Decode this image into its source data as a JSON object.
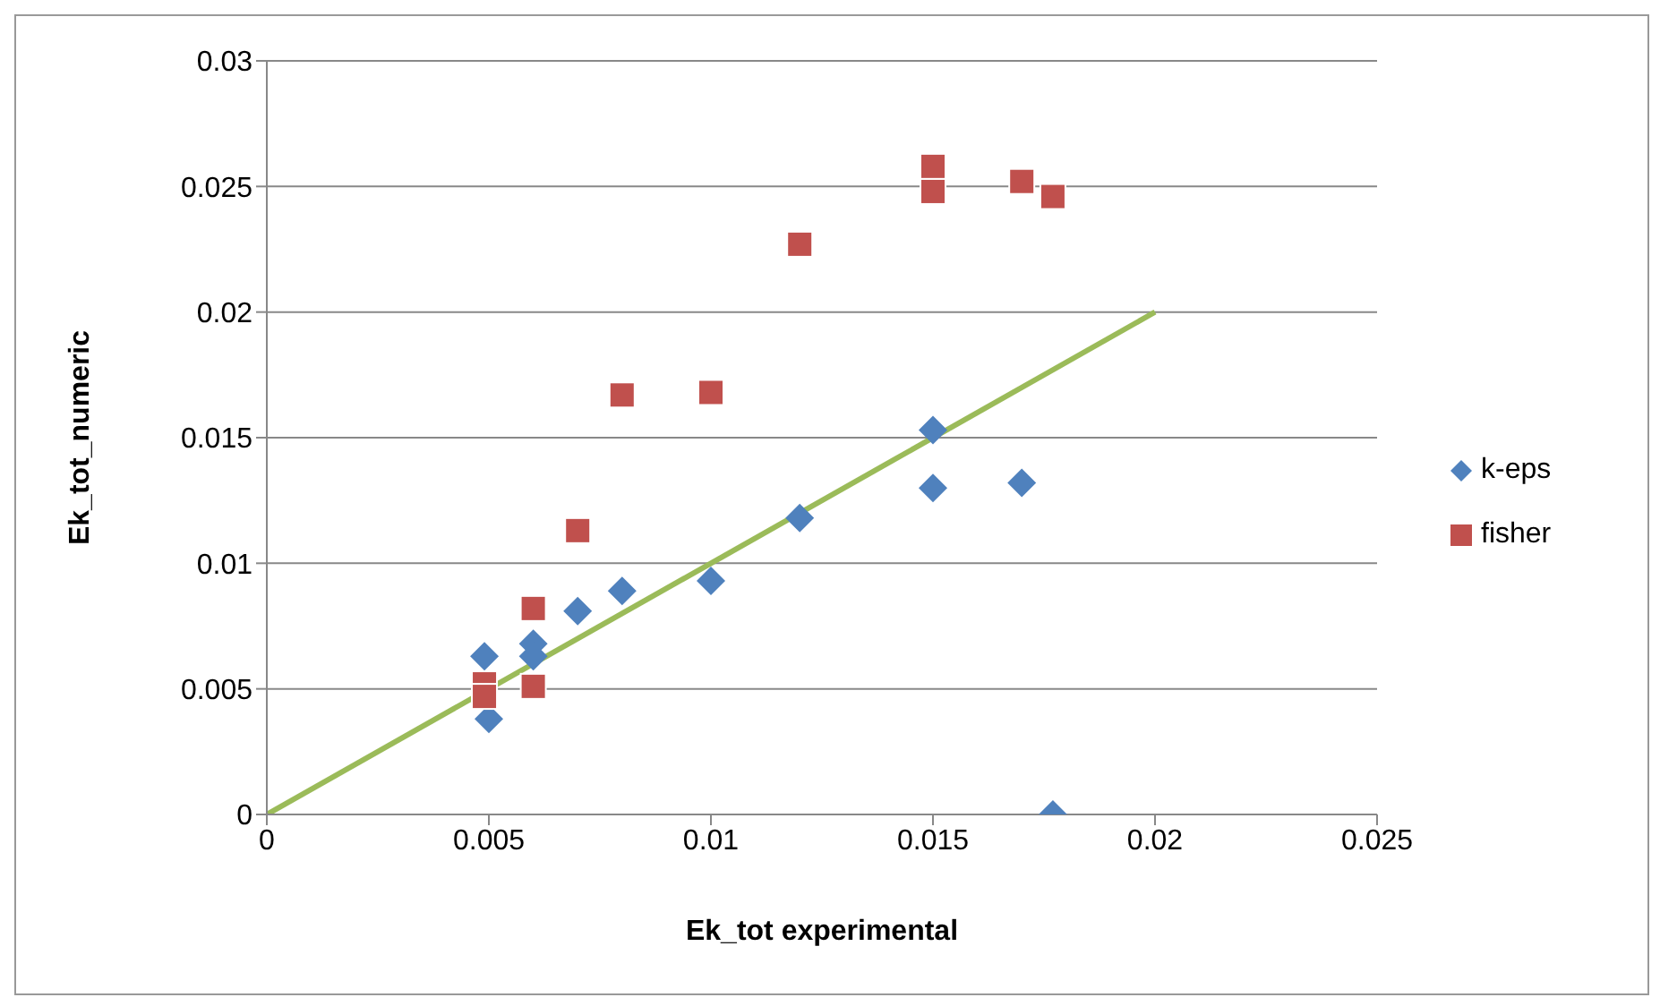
{
  "chart_data": {
    "type": "scatter",
    "xlabel": "Ek_tot experimental",
    "ylabel": "Ek_tot_numeric",
    "xlim": [
      0,
      0.025
    ],
    "xticks": [
      0,
      0.005,
      0.01,
      0.015,
      0.02,
      0.025
    ],
    "ylim": [
      0,
      0.03
    ],
    "yticks": [
      0,
      0.005,
      0.01,
      0.015,
      0.02,
      0.025,
      0.03
    ],
    "grid": "y",
    "legend": "right",
    "series": [
      {
        "name": "k-eps",
        "color": "#4f81bd",
        "marker": "diamond",
        "x": [
          0.0049,
          0.005,
          0.006,
          0.006,
          0.007,
          0.008,
          0.01,
          0.012,
          0.015,
          0.015,
          0.017,
          0.0177
        ],
        "values": [
          0.0063,
          0.0038,
          0.0068,
          0.0063,
          0.0081,
          0.0089,
          0.0093,
          0.0118,
          0.0153,
          0.013,
          0.0132,
          0
        ]
      },
      {
        "name": "fisher",
        "color": "#c0504d",
        "marker": "square",
        "x": [
          0.0049,
          0.0049,
          0.006,
          0.006,
          0.007,
          0.008,
          0.01,
          0.012,
          0.015,
          0.015,
          0.017,
          0.0177
        ],
        "values": [
          0.0052,
          0.0047,
          0.0082,
          0.0051,
          0.0113,
          0.0167,
          0.0168,
          0.0227,
          0.0258,
          0.0248,
          0.0252,
          0.0246
        ]
      },
      {
        "type": "line",
        "color": "#9bbb59",
        "marker": "none",
        "x": [
          0,
          0.02
        ],
        "values": [
          0,
          0.02
        ]
      }
    ]
  }
}
